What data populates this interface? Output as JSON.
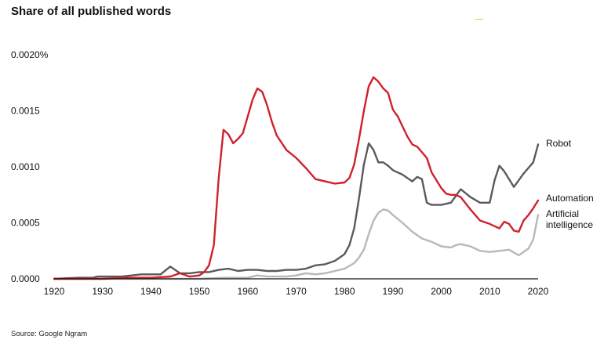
{
  "title": "Share of all published words",
  "source": "Source: Google Ngram",
  "accent_color": "#e8c04a",
  "chart_data": {
    "type": "line",
    "title": "Share of all published words",
    "xlim": [
      1920,
      2020
    ],
    "ylim": [
      0,
      0.002
    ],
    "xticks": [
      1920,
      1930,
      1940,
      1950,
      1960,
      1970,
      1980,
      1990,
      2000,
      2010,
      2020
    ],
    "xtick_labels": [
      "1920",
      "1930",
      "1940",
      "1950",
      "1960",
      "1970",
      "1980",
      "1990",
      "2000",
      "2010",
      "2020"
    ],
    "yticks": [
      0,
      0.0005,
      0.001,
      0.0015,
      0.002
    ],
    "ytick_labels": [
      "0.0000",
      "0.0005",
      "0.0010",
      "0.0015",
      "0.0020%"
    ],
    "grid": false,
    "legend": "inline labels at line ends (right)",
    "series": [
      {
        "name": "Robot",
        "color": "#5a5a5a",
        "x": [
          1920,
          1925,
          1928,
          1929,
          1930,
          1932,
          1934,
          1936,
          1938,
          1940,
          1942,
          1944,
          1946,
          1948,
          1950,
          1952,
          1954,
          1956,
          1958,
          1960,
          1962,
          1964,
          1966,
          1968,
          1970,
          1972,
          1974,
          1976,
          1978,
          1980,
          1981,
          1982,
          1983,
          1984,
          1985,
          1986,
          1987,
          1988,
          1989,
          1990,
          1991,
          1992,
          1993,
          1994,
          1995,
          1996,
          1997,
          1998,
          2000,
          2002,
          2004,
          2006,
          2008,
          2010,
          2011,
          2012,
          2013,
          2014,
          2015,
          2016,
          2017,
          2018,
          2019,
          2020
        ],
        "y": [
          0,
          1e-05,
          1e-05,
          2e-05,
          2e-05,
          2e-05,
          2e-05,
          3e-05,
          4e-05,
          4e-05,
          4e-05,
          0.00011,
          5e-05,
          5e-05,
          6e-05,
          6e-05,
          8e-05,
          9e-05,
          7e-05,
          8e-05,
          8e-05,
          7e-05,
          7e-05,
          8e-05,
          8e-05,
          9e-05,
          0.00012,
          0.00013,
          0.00016,
          0.00022,
          0.0003,
          0.00045,
          0.00072,
          0.00102,
          0.00121,
          0.00115,
          0.00104,
          0.00104,
          0.00101,
          0.00097,
          0.00095,
          0.00093,
          0.0009,
          0.00087,
          0.00091,
          0.00089,
          0.00068,
          0.00066,
          0.00066,
          0.00068,
          0.0008,
          0.00073,
          0.00068,
          0.00068,
          0.00088,
          0.00101,
          0.00096,
          0.00089,
          0.00082,
          0.00088,
          0.00094,
          0.00099,
          0.00104,
          0.0012
        ]
      },
      {
        "name": "Automation",
        "color": "#d0202e",
        "x": [
          1920,
          1930,
          1935,
          1940,
          1944,
          1946,
          1948,
          1950,
          1951,
          1952,
          1953,
          1954,
          1955,
          1956,
          1957,
          1958,
          1959,
          1960,
          1961,
          1962,
          1963,
          1964,
          1965,
          1966,
          1968,
          1970,
          1972,
          1974,
          1976,
          1978,
          1980,
          1981,
          1982,
          1983,
          1984,
          1985,
          1986,
          1987,
          1988,
          1989,
          1990,
          1991,
          1992,
          1993,
          1994,
          1995,
          1996,
          1997,
          1998,
          2000,
          2001,
          2002,
          2003,
          2004,
          2006,
          2008,
          2010,
          2011,
          2012,
          2013,
          2014,
          2015,
          2016,
          2017,
          2018,
          2019,
          2020
        ],
        "y": [
          0,
          0,
          1e-05,
          1e-05,
          2e-05,
          5e-05,
          2e-05,
          3e-05,
          6e-05,
          0.00012,
          0.0003,
          0.0009,
          0.00133,
          0.00129,
          0.00121,
          0.00125,
          0.0013,
          0.00145,
          0.0016,
          0.0017,
          0.00167,
          0.00155,
          0.0014,
          0.00128,
          0.00115,
          0.00108,
          0.00099,
          0.00089,
          0.00087,
          0.00085,
          0.00086,
          0.0009,
          0.00102,
          0.00125,
          0.0015,
          0.00172,
          0.0018,
          0.00176,
          0.0017,
          0.00166,
          0.00151,
          0.00145,
          0.00136,
          0.00127,
          0.0012,
          0.00118,
          0.00113,
          0.00108,
          0.00095,
          0.00081,
          0.00076,
          0.00075,
          0.00075,
          0.00073,
          0.00062,
          0.00052,
          0.00049,
          0.00047,
          0.00045,
          0.00051,
          0.00049,
          0.00043,
          0.00042,
          0.00052,
          0.00057,
          0.00063,
          0.0007
        ]
      },
      {
        "name": "Artificial intelligence",
        "color": "#b8b8b8",
        "x": [
          1920,
          1940,
          1950,
          1955,
          1960,
          1962,
          1964,
          1966,
          1968,
          1970,
          1972,
          1974,
          1976,
          1978,
          1980,
          1982,
          1983,
          1984,
          1985,
          1986,
          1987,
          1988,
          1989,
          1990,
          1992,
          1994,
          1996,
          1998,
          2000,
          2002,
          2003,
          2004,
          2006,
          2008,
          2010,
          2012,
          2014,
          2016,
          2018,
          2019,
          2020
        ],
        "y": [
          0,
          0,
          0,
          1e-05,
          1e-05,
          3e-05,
          2e-05,
          2e-05,
          2e-05,
          3e-05,
          5e-05,
          4e-05,
          5e-05,
          7e-05,
          9e-05,
          0.00014,
          0.00019,
          0.00026,
          0.0004,
          0.00052,
          0.00059,
          0.00062,
          0.00061,
          0.00057,
          0.0005,
          0.00042,
          0.00036,
          0.00033,
          0.00029,
          0.00028,
          0.0003,
          0.00031,
          0.00029,
          0.00025,
          0.00024,
          0.00025,
          0.00026,
          0.00021,
          0.00027,
          0.00035,
          0.00057
        ]
      }
    ],
    "line_labels": [
      {
        "series": "Robot",
        "lines": [
          "Robot"
        ]
      },
      {
        "series": "Automation",
        "lines": [
          "Automation"
        ]
      },
      {
        "series": "Artificial intelligence",
        "lines": [
          "Artificial",
          "intelligence"
        ]
      }
    ]
  }
}
